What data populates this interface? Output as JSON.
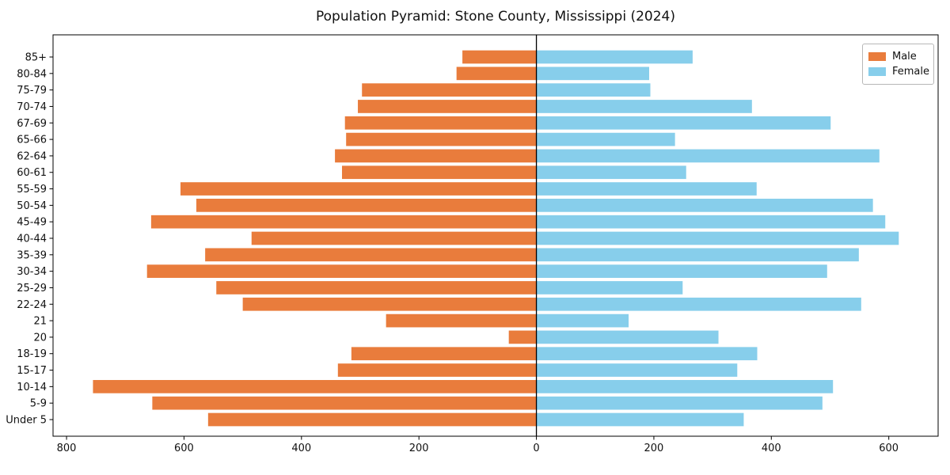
{
  "chart_data": {
    "type": "bar",
    "variant": "population-pyramid",
    "title": "Population Pyramid: Stone County, Mississippi (2024)",
    "categories": [
      "85+",
      "80-84",
      "75-79",
      "70-74",
      "67-69",
      "65-66",
      "62-64",
      "60-61",
      "55-59",
      "50-54",
      "45-49",
      "40-44",
      "35-39",
      "30-34",
      "25-29",
      "22-24",
      "21",
      "20",
      "18-19",
      "15-17",
      "10-14",
      "5-9",
      "Under 5"
    ],
    "series": [
      {
        "name": "Male",
        "side": "left",
        "color": "#E97C3C",
        "values": [
          126,
          136,
          297,
          304,
          326,
          324,
          343,
          331,
          606,
          579,
          656,
          485,
          564,
          663,
          545,
          500,
          256,
          47,
          315,
          338,
          755,
          654,
          559
        ]
      },
      {
        "name": "Female",
        "side": "right",
        "color": "#87CEEB",
        "values": [
          266,
          192,
          194,
          367,
          501,
          236,
          584,
          255,
          375,
          573,
          594,
          617,
          549,
          495,
          249,
          553,
          157,
          310,
          376,
          342,
          505,
          487,
          353
        ]
      }
    ],
    "x_tick_values": [
      -800,
      -600,
      -400,
      -200,
      0,
      200,
      400,
      600
    ],
    "x_tick_labels": [
      "800",
      "600",
      "400",
      "200",
      "0",
      "200",
      "400",
      "600"
    ],
    "xlim": [
      -823,
      684
    ],
    "grid": false,
    "zero_line_color": "#000000",
    "axis_color": "#000000",
    "legend_position": "upper-right"
  }
}
